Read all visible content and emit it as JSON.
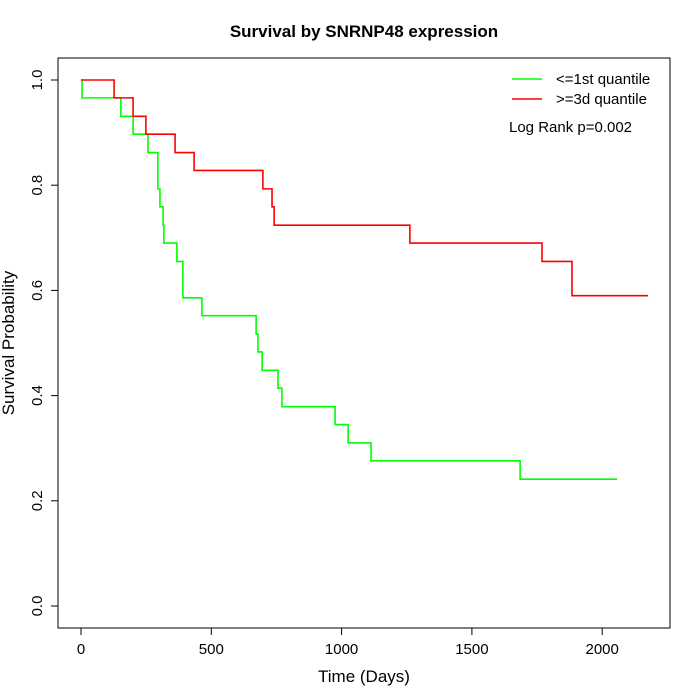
{
  "chart_data": {
    "type": "line",
    "step": true,
    "title": "Survival by SNRNP48 expression",
    "xlabel": "Time (Days)",
    "ylabel": "Survival Probability",
    "xlim": [
      0,
      2176
    ],
    "ylim": [
      0,
      1
    ],
    "xticks": [
      0,
      500,
      1000,
      1500,
      2000
    ],
    "yticks": [
      0.0,
      0.2,
      0.4,
      0.6,
      0.8,
      1.0
    ],
    "ytick_labels": [
      "0.0",
      "0.2",
      "0.4",
      "0.6",
      "0.8",
      "1.0"
    ],
    "grid": false,
    "legend_position": "top-right",
    "annotation": "Log Rank p=0.002",
    "series": [
      {
        "name": "<=1st quantile",
        "color": "#00ff00",
        "x": [
          0,
          4,
          153,
          200,
          257,
          295,
          303,
          315,
          318,
          368,
          391,
          464,
          672,
          679,
          695,
          756,
          771,
          975,
          1025,
          1113,
          1685,
          2057
        ],
        "y": [
          1.0,
          0.966,
          0.931,
          0.897,
          0.862,
          0.793,
          0.759,
          0.724,
          0.69,
          0.655,
          0.586,
          0.552,
          0.517,
          0.483,
          0.448,
          0.414,
          0.379,
          0.345,
          0.31,
          0.276,
          0.241,
          0.241
        ]
      },
      {
        "name": ">=3d quantile",
        "color": "#ff0000",
        "x": [
          0,
          127,
          200,
          249,
          361,
          434,
          698,
          733,
          741,
          1262,
          1769,
          1884,
          2176
        ],
        "y": [
          1.0,
          0.966,
          0.931,
          0.897,
          0.862,
          0.828,
          0.793,
          0.759,
          0.724,
          0.69,
          0.655,
          0.59,
          0.59
        ]
      }
    ]
  }
}
